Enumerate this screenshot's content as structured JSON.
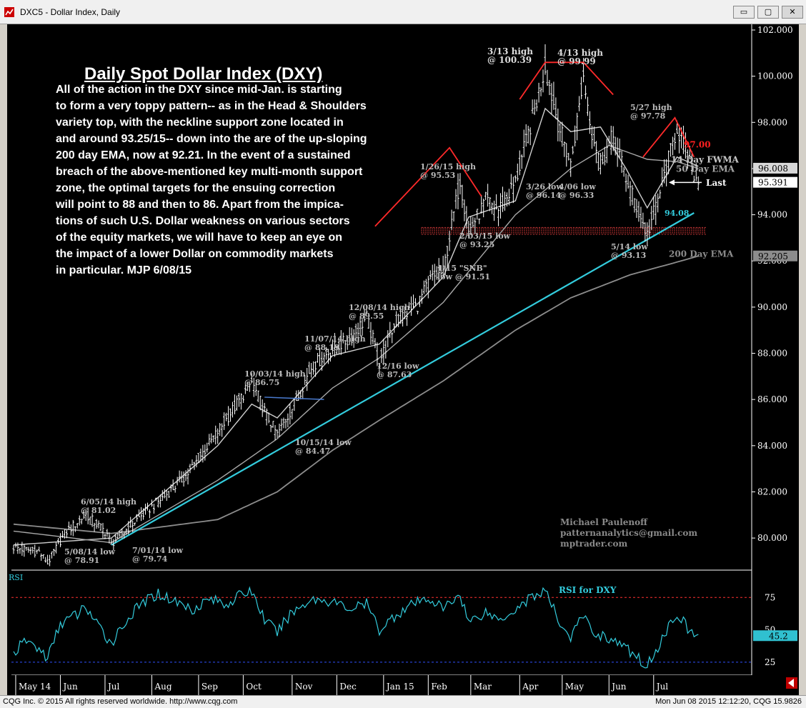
{
  "window": {
    "title": "DXC5 - Dollar Index, Daily",
    "buttons": [
      "▭",
      "▢",
      "✕"
    ]
  },
  "headline": "Daily Spot Dollar Index (DXY)",
  "commentary": "All of the action in the DXY since mid-Jan. is starting\nto form a very toppy pattern-- as in the Head & Shoulders\nvariety top, with the neckline support zone located in\nand around 93.25/15-- down into the are of the up-sloping\n200 day EMA, now at 92.21. In the event of a sustained\nbreach of the above-mentioned key multi-month support\nzone, the optimal targets for the ensuing correction\nwill point to 88 and then to 86. Apart from the impica-\ntions of such U.S. Dollar weakness on various sectors\nof the equity markets, we will have to keep an eye on\nthe impact of a lower Dollar on commodity markets\nin particular.  MJP 6/08/15",
  "credit": [
    "Michael Paulenoff",
    "patternanalytics@gmail.com",
    "mptrader.com"
  ],
  "colors": {
    "background": "#000000",
    "price_bars": "#ffffff",
    "trendline": "#33ccdd",
    "pattern": "#ff2a2a",
    "support_zone": "#b03030",
    "ema": "#8c8c8c",
    "rsi": "#33ccdd",
    "label_text": "#bbbbbb"
  },
  "chart_data": [
    {
      "type": "line",
      "title": "Daily Spot Dollar Index (DXY)",
      "ylim": [
        78.6,
        102.0
      ],
      "yticks": [
        80.0,
        82.0,
        84.0,
        86.0,
        88.0,
        90.0,
        92.0,
        94.0,
        96.0,
        98.0,
        100.0,
        102.0
      ],
      "ytick_labels": [
        "80.000",
        "82.000",
        "84.000",
        "86.000",
        "88.000",
        "90.000",
        "92.000",
        "94.000",
        "96.000",
        "98.000",
        "100.000",
        "102.000"
      ],
      "x_month_labels": [
        "May 14",
        "Jun",
        "Jul",
        "Aug",
        "Sep",
        "Oct",
        "Nov",
        "Dec",
        "Jan 15",
        "Feb",
        "Mar",
        "Apr",
        "May",
        "Jun",
        "Jul"
      ],
      "x_month_index": [
        1,
        22,
        43,
        65,
        87,
        108,
        131,
        152,
        174,
        195,
        215,
        238,
        258,
        280,
        301
      ],
      "bars_count": 285,
      "price_keypoints": [
        [
          0,
          79.6
        ],
        [
          12,
          79.4
        ],
        [
          16,
          78.91
        ],
        [
          24,
          80.2
        ],
        [
          34,
          81.02
        ],
        [
          44,
          80.2
        ],
        [
          46,
          79.74
        ],
        [
          58,
          80.8
        ],
        [
          72,
          81.9
        ],
        [
          82,
          82.8
        ],
        [
          96,
          84.6
        ],
        [
          112,
          86.75
        ],
        [
          118,
          85.5
        ],
        [
          124,
          84.47
        ],
        [
          132,
          85.8
        ],
        [
          140,
          87.4
        ],
        [
          150,
          88.19
        ],
        [
          158,
          88.6
        ],
        [
          166,
          89.55
        ],
        [
          172,
          87.63
        ],
        [
          180,
          89.4
        ],
        [
          190,
          90.1
        ],
        [
          196,
          91.2
        ],
        [
          202,
          91.51
        ],
        [
          210,
          95.53
        ],
        [
          214,
          93.25
        ],
        [
          222,
          94.6
        ],
        [
          228,
          94.2
        ],
        [
          236,
          95.4
        ],
        [
          244,
          98.2
        ],
        [
          250,
          100.39
        ],
        [
          256,
          98.0
        ],
        [
          262,
          96.14
        ],
        [
          268,
          99.99
        ],
        [
          272,
          97.6
        ],
        [
          276,
          96.33
        ],
        [
          282,
          97.4
        ],
        [
          288,
          95.6
        ],
        [
          294,
          94.1
        ],
        [
          298,
          93.13
        ],
        [
          304,
          95.0
        ],
        [
          312,
          97.78
        ],
        [
          318,
          96.2
        ],
        [
          322,
          95.39
        ]
      ],
      "series": [
        {
          "name": "14 Day FWMA",
          "values": [
            [
              0,
              79.7
            ],
            [
              46,
              80.0
            ],
            [
              96,
              84.0
            ],
            [
              112,
              85.8
            ],
            [
              124,
              85.2
            ],
            [
              150,
              87.9
            ],
            [
              172,
              88.4
            ],
            [
              202,
              91.3
            ],
            [
              214,
              93.9
            ],
            [
              236,
              94.6
            ],
            [
              250,
              98.6
            ],
            [
              262,
              97.6
            ],
            [
              276,
              97.8
            ],
            [
              288,
              96.0
            ],
            [
              298,
              94.3
            ],
            [
              312,
              96.5
            ],
            [
              322,
              96.1
            ]
          ]
        },
        {
          "name": "50 Day EMA",
          "values": [
            [
              0,
              80.3
            ],
            [
              46,
              79.8
            ],
            [
              96,
              82.5
            ],
            [
              124,
              84.3
            ],
            [
              150,
              86.5
            ],
            [
              172,
              87.8
            ],
            [
              202,
              90.2
            ],
            [
              236,
              94.0
            ],
            [
              262,
              96.0
            ],
            [
              280,
              97.0
            ],
            [
              298,
              96.4
            ],
            [
              312,
              96.3
            ],
            [
              322,
              96.0
            ]
          ]
        },
        {
          "name": "200 Day EMA",
          "values": [
            [
              0,
              80.6
            ],
            [
              46,
              80.2
            ],
            [
              96,
              80.8
            ],
            [
              124,
              82.0
            ],
            [
              150,
              83.8
            ],
            [
              172,
              85.1
            ],
            [
              202,
              86.8
            ],
            [
              236,
              89.0
            ],
            [
              262,
              90.4
            ],
            [
              290,
              91.4
            ],
            [
              310,
              91.9
            ],
            [
              322,
              92.21
            ]
          ]
        }
      ],
      "trendline": [
        [
          46,
          79.7
        ],
        [
          320,
          94.08
        ]
      ],
      "support_zone": [
        93.15,
        93.45
      ],
      "head_shoulders": [
        [
          [
            170,
            93.5
          ],
          [
            205,
            96.9
          ],
          [
            220,
            94.8
          ]
        ],
        [
          [
            238,
            99.0
          ],
          [
            250,
            100.6
          ],
          [
            268,
            100.6
          ],
          [
            282,
            99.2
          ]
        ],
        [
          [
            296,
            96.5
          ],
          [
            311,
            98.2
          ],
          [
            320,
            96.5
          ]
        ]
      ],
      "annotations": [
        {
          "text": "6/05/14 high",
          "sub": "@ 81.02"
        },
        {
          "text": "5/08/14 low",
          "sub": "@ 78.91"
        },
        {
          "text": "7/01/14 low",
          "sub": "@ 79.74"
        },
        {
          "text": "10/03/14 high",
          "sub": "@ 86.75"
        },
        {
          "text": "10/15/14 low",
          "sub": "@ 84.47"
        },
        {
          "text": "11/07/14 high",
          "sub": "@ 88.19"
        },
        {
          "text": "12/08/14 high",
          "sub": "@ 89.55"
        },
        {
          "text": "12/16 low",
          "sub": "@ 87.63"
        },
        {
          "text": "1/15 \"SNB\"",
          "sub": "low @ 91.51"
        },
        {
          "text": "1/26/15 high",
          "sub": "@ 95.53"
        },
        {
          "text": "2/03/15 low",
          "sub": "@ 93.25"
        },
        {
          "text": "3/13 high",
          "sub": "@ 100.39"
        },
        {
          "text": "4/13 high",
          "sub": "@ 99.99"
        },
        {
          "text": "3/26 low",
          "sub": "@ 96.14"
        },
        {
          "text": "4/06 low",
          "sub": "@ 96.33"
        },
        {
          "text": "5/27 high",
          "sub": "@ 97.78"
        },
        {
          "text": "5/14 low",
          "sub": "@ 93.13"
        }
      ],
      "level_labels": {
        "target": "97.00",
        "trend_value": "94.08",
        "fwma": "14 Day FWMA",
        "ema50": "50 Day EMA",
        "ema200": "200 Day EMA",
        "last": "Last"
      },
      "price_tags": {
        "ema50": "96.008",
        "last": "95.391",
        "ema200": "92.205"
      }
    },
    {
      "type": "line",
      "title": "RSI",
      "series_label": "RSI for DXY",
      "ylim": [
        15,
        95
      ],
      "yticks": [
        25,
        50,
        75
      ],
      "ytick_labels": [
        "25",
        "50",
        "75"
      ],
      "ref_lines": [
        75,
        25
      ],
      "last_value": "45.2",
      "values": [
        [
          0,
          32
        ],
        [
          6,
          42
        ],
        [
          12,
          35
        ],
        [
          16,
          28
        ],
        [
          22,
          55
        ],
        [
          30,
          62
        ],
        [
          34,
          68
        ],
        [
          40,
          52
        ],
        [
          46,
          40
        ],
        [
          52,
          55
        ],
        [
          60,
          70
        ],
        [
          68,
          78
        ],
        [
          76,
          72
        ],
        [
          84,
          66
        ],
        [
          92,
          74
        ],
        [
          100,
          70
        ],
        [
          108,
          78
        ],
        [
          112,
          80
        ],
        [
          118,
          58
        ],
        [
          124,
          48
        ],
        [
          130,
          62
        ],
        [
          140,
          74
        ],
        [
          150,
          72
        ],
        [
          158,
          66
        ],
        [
          166,
          70
        ],
        [
          172,
          50
        ],
        [
          180,
          62
        ],
        [
          188,
          70
        ],
        [
          196,
          74
        ],
        [
          202,
          66
        ],
        [
          210,
          78
        ],
        [
          214,
          56
        ],
        [
          222,
          64
        ],
        [
          228,
          58
        ],
        [
          236,
          66
        ],
        [
          244,
          76
        ],
        [
          250,
          80
        ],
        [
          256,
          58
        ],
        [
          262,
          44
        ],
        [
          268,
          62
        ],
        [
          272,
          48
        ],
        [
          278,
          45
        ],
        [
          286,
          38
        ],
        [
          294,
          28
        ],
        [
          298,
          22
        ],
        [
          304,
          40
        ],
        [
          312,
          64
        ],
        [
          318,
          48
        ],
        [
          322,
          45.2
        ]
      ]
    }
  ],
  "footer": {
    "left": "CQG Inc. © 2015 All rights reserved worldwide. http://www.cqg.com",
    "right": "Mon Jun 08 2015 12:12:20, CQG 15.9826"
  }
}
